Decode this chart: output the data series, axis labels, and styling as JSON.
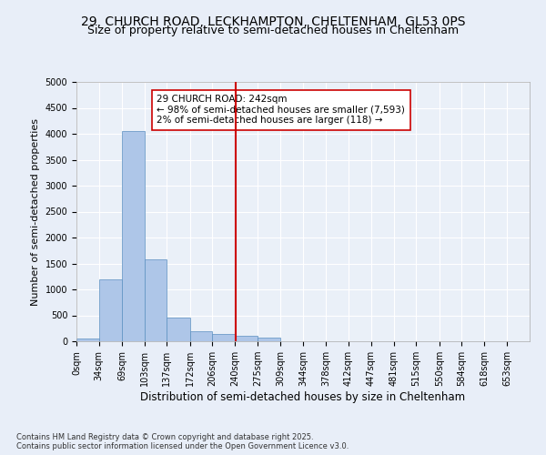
{
  "title_line1": "29, CHURCH ROAD, LECKHAMPTON, CHELTENHAM, GL53 0PS",
  "title_line2": "Size of property relative to semi-detached houses in Cheltenham",
  "xlabel": "Distribution of semi-detached houses by size in Cheltenham",
  "ylabel": "Number of semi-detached properties",
  "footnote": "Contains HM Land Registry data © Crown copyright and database right 2025.\nContains public sector information licensed under the Open Government Licence v3.0.",
  "bar_edges": [
    0,
    34,
    69,
    103,
    137,
    172,
    206,
    240,
    275,
    309,
    344,
    378,
    412,
    447,
    481,
    515,
    550,
    584,
    618,
    653,
    687
  ],
  "bar_heights": [
    50,
    1200,
    4050,
    1575,
    450,
    200,
    145,
    100,
    75,
    0,
    0,
    0,
    0,
    0,
    0,
    0,
    0,
    0,
    0,
    0
  ],
  "bar_color": "#aec6e8",
  "bar_edgecolor": "#5a8fc0",
  "property_size": 242,
  "property_label": "29 CHURCH ROAD: 242sqm",
  "annotation_smaller": "← 98% of semi-detached houses are smaller (7,593)",
  "annotation_larger": "2% of semi-detached houses are larger (118) →",
  "vline_color": "#cc0000",
  "annotation_box_edgecolor": "#cc0000",
  "annotation_box_facecolor": "#ffffff",
  "ylim": [
    0,
    5000
  ],
  "yticks": [
    0,
    500,
    1000,
    1500,
    2000,
    2500,
    3000,
    3500,
    4000,
    4500,
    5000
  ],
  "bg_color": "#e8eef8",
  "axes_bg_color": "#eaf0f8",
  "title_fontsize": 10,
  "title2_fontsize": 9,
  "tick_label_fontsize": 7,
  "xlabel_fontsize": 8.5,
  "ylabel_fontsize": 8,
  "annot_fontsize": 7.5,
  "footnote_fontsize": 6
}
